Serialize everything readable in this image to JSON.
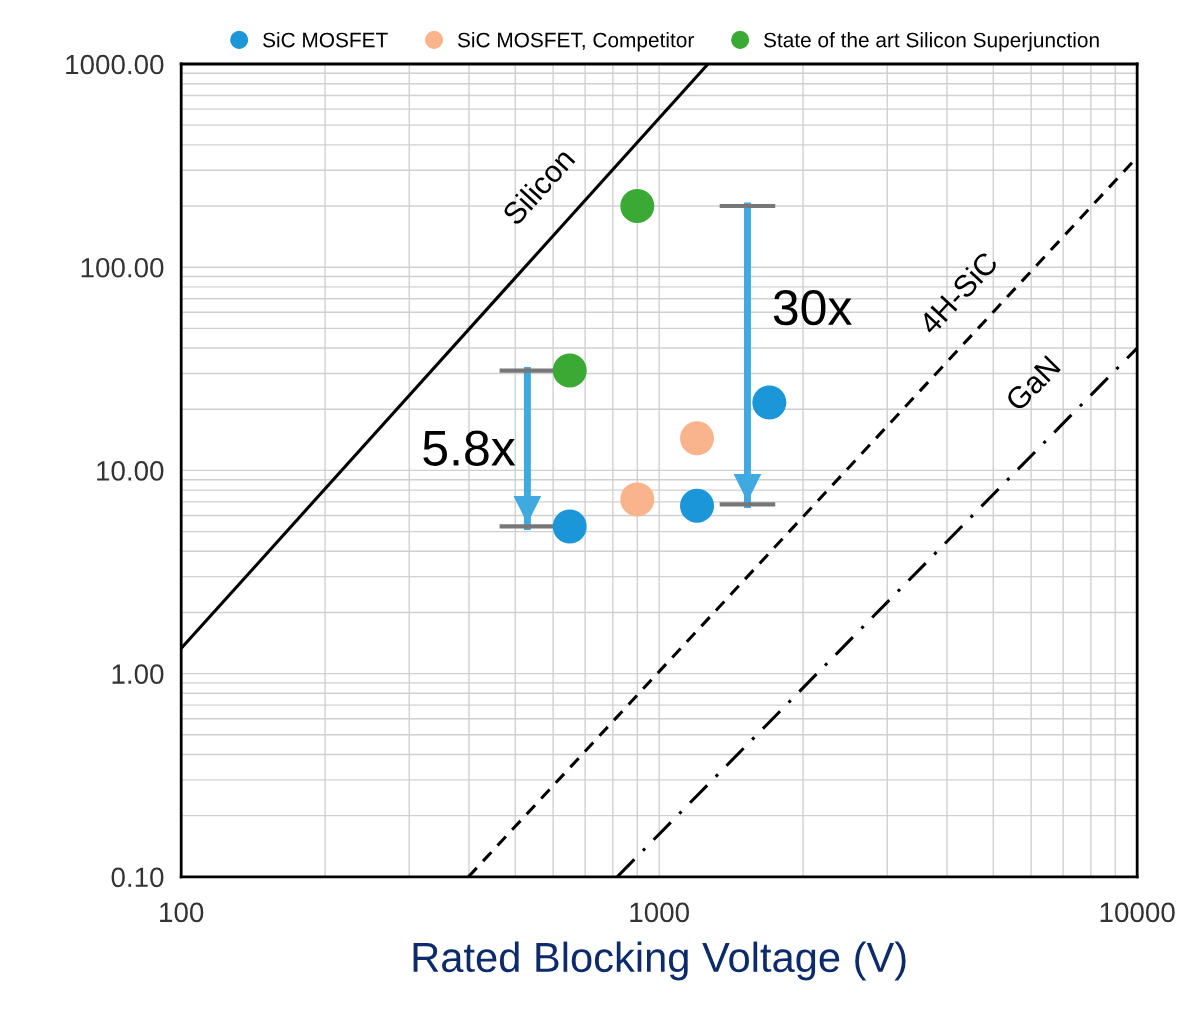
{
  "chart_data": {
    "type": "scatter",
    "xlabel": "Rated Blocking Voltage (V)",
    "log": "xy",
    "grid": true,
    "legend": "top",
    "marker": "circle",
    "xlim": [
      100,
      10000
    ],
    "xticks": [
      100,
      1000,
      10000
    ],
    "ylim": [
      0.1,
      1000
    ],
    "yticks": [
      {
        "value": 0.1,
        "label": "0.10"
      },
      {
        "value": 1,
        "label": "1.00"
      },
      {
        "value": 10,
        "label": "10.00"
      },
      {
        "value": 100,
        "label": "100.00"
      },
      {
        "value": 1000,
        "label": "1000.00"
      }
    ],
    "series": [
      {
        "name": "SiC MOSFET",
        "color": "#1b96d8",
        "x": [
          650,
          1200,
          1700
        ],
        "values": [
          5.3,
          6.7,
          21.6
        ]
      },
      {
        "name": "SiC MOSFET, Competitor",
        "color": "#f9b48c",
        "x": [
          900,
          1200
        ],
        "values": [
          7.2,
          14.4
        ]
      },
      {
        "name": "State of the art Silicon Superjunction",
        "color": "#3aaa35",
        "x": [
          650,
          900
        ],
        "values": [
          31,
          200
        ]
      },
      {
        "type": "line",
        "color": "#000000",
        "line_style": "solid",
        "marker": "none",
        "x": [
          100,
          1265
        ],
        "values": [
          1.33,
          1000
        ]
      },
      {
        "type": "line",
        "color": "#000000",
        "line_style": "dashed",
        "marker": "none",
        "x": [
          399,
          10000
        ],
        "values": [
          0.1,
          348
        ]
      },
      {
        "type": "line",
        "color": "#000000",
        "line_style": "dashdot",
        "marker": "none",
        "x": [
          817,
          10000
        ],
        "values": [
          0.1,
          40
        ]
      },
      {
        "type": "line",
        "color": "#3fa9e0",
        "line_style": "solid",
        "marker": "none",
        "x": [
          530,
          530
        ],
        "values": [
          31,
          5.3
        ]
      },
      {
        "type": "line",
        "color": "#3fa9e0",
        "line_style": "solid",
        "marker": "none",
        "x": [
          1530,
          1530
        ],
        "values": [
          200,
          6.8
        ]
      }
    ],
    "annotations": [
      "Silicon",
      "4H-SiC",
      "GaN",
      "5.8x",
      "30x"
    ]
  }
}
